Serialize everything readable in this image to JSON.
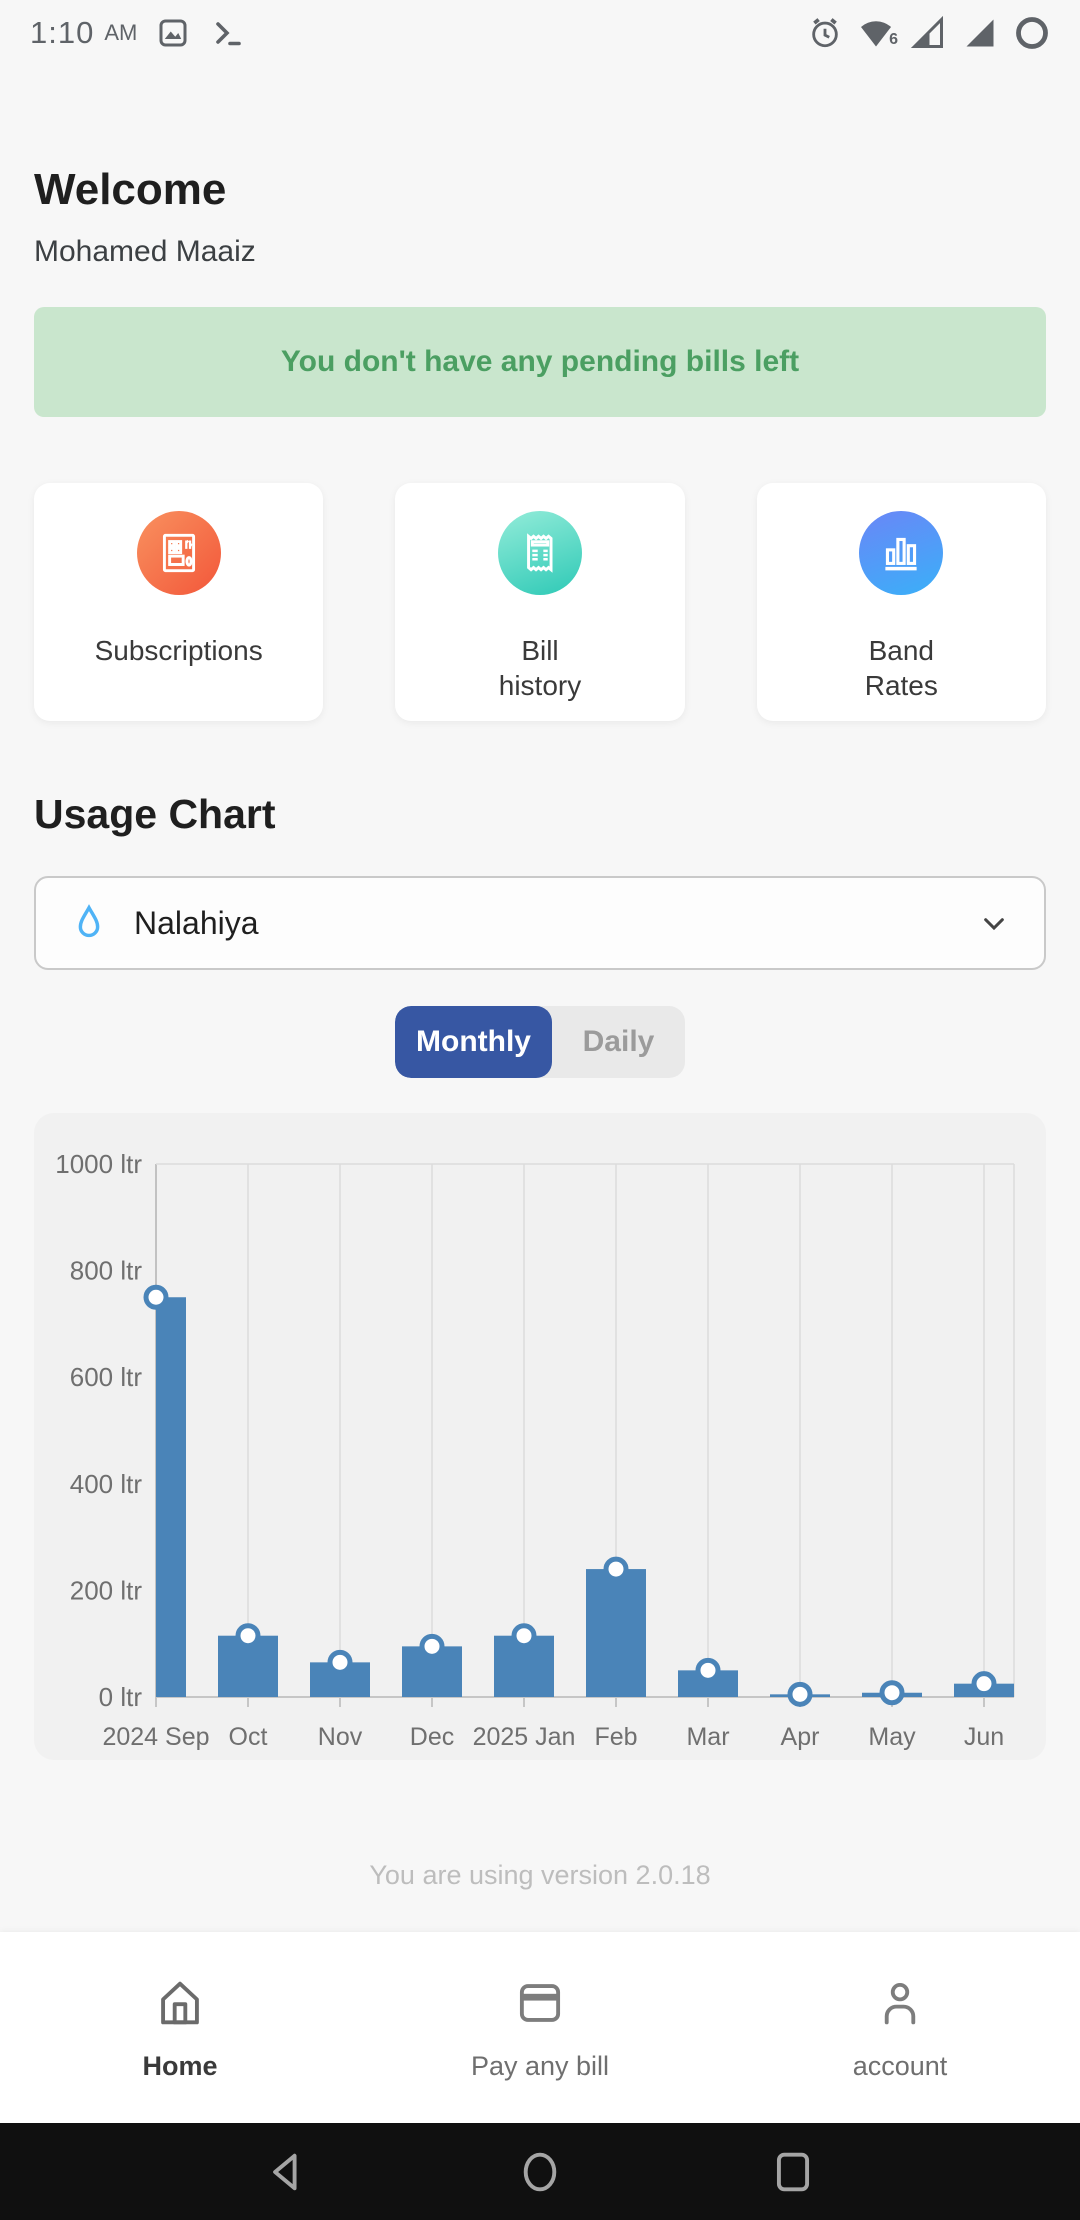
{
  "status_bar": {
    "time": "1:10",
    "meridiem": "AM",
    "left_icons": [
      "image-icon",
      "terminal-icon"
    ],
    "right_icons": [
      "alarm-icon",
      "wifi-icon",
      "signal-icon-partial",
      "signal-icon-full",
      "battery-circle-icon"
    ],
    "wifi_label": "6"
  },
  "header": {
    "title": "Welcome",
    "user_name": "Mohamed Maaiz"
  },
  "banner": {
    "text": "You don't have any pending bills left",
    "bg_color": "#c9e6cd",
    "text_color": "#4b9f62"
  },
  "quick_actions": [
    {
      "label": "Subscriptions",
      "icon": "subscriptions-icon",
      "gradient": [
        "#f9915f",
        "#f2573a"
      ]
    },
    {
      "label": "Bill\nhistory",
      "icon": "bill-history-icon",
      "gradient": [
        "#93ecd9",
        "#2ec9b6"
      ]
    },
    {
      "label": "Band\nRates",
      "icon": "band-rates-icon",
      "gradient": [
        "#6a86f7",
        "#3ab0f8"
      ]
    }
  ],
  "usage": {
    "section_title": "Usage Chart",
    "meter_selector": {
      "value": "Nalahiya",
      "icon": "water-drop-icon"
    },
    "toggle": {
      "options": [
        "Monthly",
        "Daily"
      ],
      "selected": "Monthly",
      "active_color": "#3757a3"
    }
  },
  "chart_data": {
    "type": "bar",
    "title": "Usage Chart",
    "categories": [
      "2024 Sep",
      "Oct",
      "Nov",
      "Dec",
      "2025 Jan",
      "Feb",
      "Mar",
      "Apr",
      "May",
      "Jun"
    ],
    "values": [
      750,
      115,
      65,
      95,
      115,
      240,
      50,
      5,
      8,
      25
    ],
    "unit": "ltr",
    "y_ticks": [
      0,
      200,
      400,
      600,
      800,
      1000
    ],
    "ylim": [
      0,
      1000
    ],
    "xlabel": "",
    "ylabel": "",
    "bar_color": "#4a84b8",
    "marker": "white-circle-on-bar-top",
    "grid": "vertical",
    "legend": "none"
  },
  "version_text": "You are using version 2.0.18",
  "bottom_nav": [
    {
      "label": "Home",
      "icon": "home-icon",
      "active": true
    },
    {
      "label": "Pay any bill",
      "icon": "card-icon",
      "active": false
    },
    {
      "label": "account",
      "icon": "person-icon",
      "active": false
    }
  ],
  "android_nav": [
    "back-button",
    "home-button",
    "recents-button"
  ]
}
